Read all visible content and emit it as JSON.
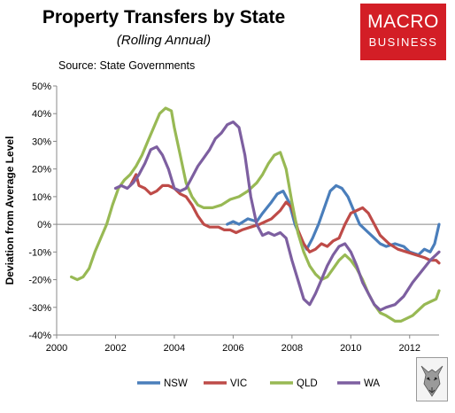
{
  "header": {
    "title": "Property Transfers by State",
    "subtitle": "(Rolling Annual)",
    "source": "Source: State Governments",
    "logo_line1": "MACRO",
    "logo_line2": "BUSINESS",
    "logo_color": "#d31e26"
  },
  "chart_data": {
    "type": "line",
    "title": "Property Transfers by State",
    "subtitle": "(Rolling Annual)",
    "xlabel": "",
    "ylabel": "Deviation from Average Level",
    "xlim": [
      2000,
      2013
    ],
    "ylim": [
      -40,
      50
    ],
    "x_ticks": [
      2000,
      2002,
      2004,
      2006,
      2008,
      2010,
      2012
    ],
    "y_ticks": [
      -40,
      -30,
      -20,
      -10,
      0,
      10,
      20,
      30,
      40,
      50
    ],
    "y_tick_labels": [
      "-40%",
      "-30%",
      "-20%",
      "-10%",
      "0%",
      "10%",
      "20%",
      "30%",
      "40%",
      "50%"
    ],
    "grid": false,
    "legend_position": "bottom",
    "series": [
      {
        "name": "NSW",
        "color": "#4a7ebb",
        "points": [
          [
            2005.8,
            0
          ],
          [
            2006.0,
            1
          ],
          [
            2006.2,
            0
          ],
          [
            2006.5,
            2
          ],
          [
            2006.8,
            1
          ],
          [
            2007.0,
            4
          ],
          [
            2007.3,
            8
          ],
          [
            2007.5,
            11
          ],
          [
            2007.7,
            12
          ],
          [
            2007.9,
            8
          ],
          [
            2008.1,
            0
          ],
          [
            2008.3,
            -5
          ],
          [
            2008.5,
            -9
          ],
          [
            2008.7,
            -5
          ],
          [
            2008.9,
            0
          ],
          [
            2009.1,
            6
          ],
          [
            2009.3,
            12
          ],
          [
            2009.5,
            14
          ],
          [
            2009.7,
            13
          ],
          [
            2009.9,
            10
          ],
          [
            2010.1,
            5
          ],
          [
            2010.3,
            0
          ],
          [
            2010.5,
            -2
          ],
          [
            2010.8,
            -5
          ],
          [
            2011.0,
            -7
          ],
          [
            2011.2,
            -8
          ],
          [
            2011.5,
            -7
          ],
          [
            2011.8,
            -8
          ],
          [
            2012.0,
            -10
          ],
          [
            2012.3,
            -11
          ],
          [
            2012.5,
            -9
          ],
          [
            2012.7,
            -10
          ],
          [
            2012.85,
            -7
          ],
          [
            2013.0,
            0
          ]
        ]
      },
      {
        "name": "VIC",
        "color": "#be4b48",
        "points": [
          [
            2002.5,
            14
          ],
          [
            2002.7,
            18
          ],
          [
            2002.8,
            14
          ],
          [
            2003.0,
            13
          ],
          [
            2003.2,
            11
          ],
          [
            2003.4,
            12
          ],
          [
            2003.6,
            14
          ],
          [
            2003.8,
            14
          ],
          [
            2004.0,
            13
          ],
          [
            2004.2,
            11
          ],
          [
            2004.4,
            10
          ],
          [
            2004.6,
            7
          ],
          [
            2004.8,
            3
          ],
          [
            2005.0,
            0
          ],
          [
            2005.2,
            -1
          ],
          [
            2005.5,
            -1
          ],
          [
            2005.7,
            -2
          ],
          [
            2005.9,
            -2
          ],
          [
            2006.1,
            -3
          ],
          [
            2006.3,
            -2
          ],
          [
            2006.6,
            -1
          ],
          [
            2006.9,
            0
          ],
          [
            2007.1,
            1
          ],
          [
            2007.3,
            2
          ],
          [
            2007.6,
            5
          ],
          [
            2007.8,
            8
          ],
          [
            2008.0,
            6
          ],
          [
            2008.2,
            -2
          ],
          [
            2008.4,
            -7
          ],
          [
            2008.6,
            -10
          ],
          [
            2008.8,
            -9
          ],
          [
            2009.0,
            -7
          ],
          [
            2009.2,
            -8
          ],
          [
            2009.4,
            -6
          ],
          [
            2009.6,
            -5
          ],
          [
            2009.8,
            0
          ],
          [
            2010.0,
            4
          ],
          [
            2010.2,
            5
          ],
          [
            2010.4,
            6
          ],
          [
            2010.6,
            4
          ],
          [
            2010.8,
            0
          ],
          [
            2011.0,
            -4
          ],
          [
            2011.3,
            -7
          ],
          [
            2011.6,
            -9
          ],
          [
            2011.9,
            -10
          ],
          [
            2012.2,
            -11
          ],
          [
            2012.5,
            -12
          ],
          [
            2012.7,
            -13
          ],
          [
            2012.9,
            -13
          ],
          [
            2013.0,
            -14
          ]
        ]
      },
      {
        "name": "QLD",
        "color": "#98b954",
        "points": [
          [
            2000.5,
            -19
          ],
          [
            2000.7,
            -20
          ],
          [
            2000.9,
            -19
          ],
          [
            2001.1,
            -16
          ],
          [
            2001.3,
            -10
          ],
          [
            2001.5,
            -5
          ],
          [
            2001.7,
            0
          ],
          [
            2001.9,
            7
          ],
          [
            2002.1,
            13
          ],
          [
            2002.3,
            16
          ],
          [
            2002.5,
            18
          ],
          [
            2002.7,
            21
          ],
          [
            2002.9,
            25
          ],
          [
            2003.1,
            30
          ],
          [
            2003.3,
            35
          ],
          [
            2003.5,
            40
          ],
          [
            2003.7,
            42
          ],
          [
            2003.9,
            41
          ],
          [
            2004.0,
            35
          ],
          [
            2004.2,
            25
          ],
          [
            2004.4,
            15
          ],
          [
            2004.6,
            10
          ],
          [
            2004.8,
            7
          ],
          [
            2005.0,
            6
          ],
          [
            2005.3,
            6
          ],
          [
            2005.6,
            7
          ],
          [
            2005.9,
            9
          ],
          [
            2006.2,
            10
          ],
          [
            2006.5,
            12
          ],
          [
            2006.8,
            15
          ],
          [
            2007.0,
            18
          ],
          [
            2007.2,
            22
          ],
          [
            2007.4,
            25
          ],
          [
            2007.6,
            26
          ],
          [
            2007.8,
            20
          ],
          [
            2008.0,
            8
          ],
          [
            2008.2,
            -3
          ],
          [
            2008.4,
            -10
          ],
          [
            2008.6,
            -15
          ],
          [
            2008.8,
            -18
          ],
          [
            2009.0,
            -20
          ],
          [
            2009.2,
            -19
          ],
          [
            2009.4,
            -16
          ],
          [
            2009.6,
            -13
          ],
          [
            2009.8,
            -11
          ],
          [
            2010.0,
            -13
          ],
          [
            2010.2,
            -16
          ],
          [
            2010.4,
            -20
          ],
          [
            2010.6,
            -25
          ],
          [
            2010.8,
            -29
          ],
          [
            2011.0,
            -32
          ],
          [
            2011.2,
            -33
          ],
          [
            2011.5,
            -35
          ],
          [
            2011.7,
            -35
          ],
          [
            2011.9,
            -34
          ],
          [
            2012.1,
            -33
          ],
          [
            2012.3,
            -31
          ],
          [
            2012.5,
            -29
          ],
          [
            2012.7,
            -28
          ],
          [
            2012.9,
            -27
          ],
          [
            2013.0,
            -24
          ]
        ]
      },
      {
        "name": "WA",
        "color": "#7d5fa0",
        "points": [
          [
            2002.0,
            13
          ],
          [
            2002.2,
            14
          ],
          [
            2002.4,
            13
          ],
          [
            2002.6,
            15
          ],
          [
            2002.8,
            18
          ],
          [
            2003.0,
            22
          ],
          [
            2003.2,
            27
          ],
          [
            2003.4,
            28
          ],
          [
            2003.6,
            25
          ],
          [
            2003.8,
            20
          ],
          [
            2004.0,
            13
          ],
          [
            2004.2,
            12
          ],
          [
            2004.4,
            13
          ],
          [
            2004.6,
            17
          ],
          [
            2004.8,
            21
          ],
          [
            2005.0,
            24
          ],
          [
            2005.2,
            27
          ],
          [
            2005.4,
            31
          ],
          [
            2005.6,
            33
          ],
          [
            2005.8,
            36
          ],
          [
            2006.0,
            37
          ],
          [
            2006.2,
            35
          ],
          [
            2006.4,
            25
          ],
          [
            2006.6,
            10
          ],
          [
            2006.8,
            0
          ],
          [
            2007.0,
            -4
          ],
          [
            2007.2,
            -3
          ],
          [
            2007.4,
            -4
          ],
          [
            2007.6,
            -3
          ],
          [
            2007.8,
            -5
          ],
          [
            2008.0,
            -13
          ],
          [
            2008.2,
            -20
          ],
          [
            2008.4,
            -27
          ],
          [
            2008.6,
            -29
          ],
          [
            2008.8,
            -25
          ],
          [
            2009.0,
            -20
          ],
          [
            2009.2,
            -15
          ],
          [
            2009.4,
            -11
          ],
          [
            2009.6,
            -8
          ],
          [
            2009.8,
            -7
          ],
          [
            2010.0,
            -10
          ],
          [
            2010.2,
            -15
          ],
          [
            2010.4,
            -21
          ],
          [
            2010.6,
            -25
          ],
          [
            2010.8,
            -29
          ],
          [
            2011.0,
            -31
          ],
          [
            2011.2,
            -30
          ],
          [
            2011.5,
            -29
          ],
          [
            2011.8,
            -26
          ],
          [
            2012.1,
            -21
          ],
          [
            2012.4,
            -17
          ],
          [
            2012.7,
            -13
          ],
          [
            2012.9,
            -11
          ],
          [
            2013.0,
            -10
          ]
        ]
      }
    ]
  }
}
